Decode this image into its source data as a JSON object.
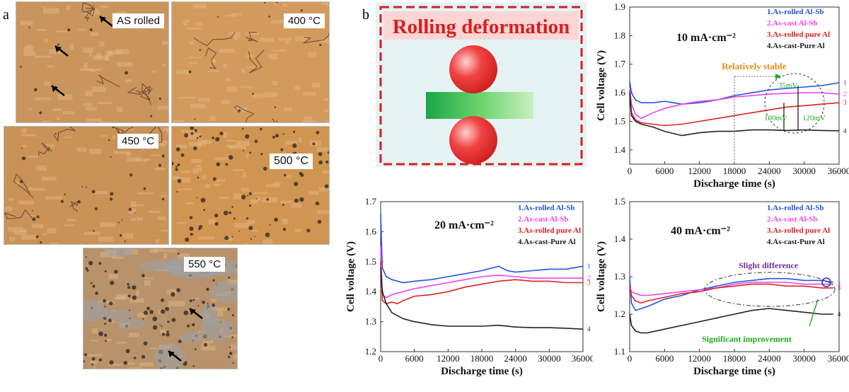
{
  "panel_a": {
    "letter": "a",
    "images": [
      {
        "label": "AS rolled",
        "color": "#c9955c"
      },
      {
        "label": "400 °C",
        "color": "#d39a5d"
      },
      {
        "label": "450 °C",
        "color": "#c99257"
      },
      {
        "label": "500 °C",
        "color": "#d19552"
      },
      {
        "label": "550 °C",
        "color": "#b8926a"
      }
    ]
  },
  "panel_b": {
    "letter": "b",
    "schematic_title": "Rolling deformation"
  },
  "colors": {
    "series1": "#2255dd",
    "series2": "#ee44ee",
    "series3": "#dd2222",
    "series4": "#222222",
    "annotation_orange": "#f08c1a",
    "annotation_green": "#22aa22",
    "annotation_purple": "#7030a0"
  },
  "chart_data": [
    {
      "type": "line",
      "title": "10 mA·cm⁻²",
      "xlabel": "Discharge time (s)",
      "ylabel": "Cell voltage (V)",
      "xlim": [
        0,
        36000
      ],
      "ylim": [
        1.35,
        1.9
      ],
      "x_ticks": [
        "0",
        "6000",
        "12000",
        "18000",
        "24000",
        "30000",
        "36000"
      ],
      "y_ticks": [
        "1.4",
        "1.5",
        "1.6",
        "1.7",
        "1.8",
        "1.9"
      ],
      "legend": [
        "1.As-rolled Al-Sb",
        "2.As-cast Al-Sb",
        "3.As-rolled pure Al",
        "4.As-cast-Pure Al"
      ],
      "end_labels": [
        "1",
        "2",
        "3",
        "4"
      ],
      "annotations": {
        "stable": "Relatively stable",
        "diff1": "35mV",
        "diff2": "100mV",
        "diff3": "120mV"
      },
      "series": [
        {
          "x": [
            0,
            300,
            1000,
            2000,
            4000,
            6000,
            9000,
            12000,
            15000,
            18000,
            21000,
            24000,
            27000,
            30000,
            33000,
            36000
          ],
          "y": [
            1.64,
            1.6,
            1.575,
            1.565,
            1.565,
            1.57,
            1.56,
            1.565,
            1.575,
            1.59,
            1.6,
            1.61,
            1.615,
            1.62,
            1.625,
            1.635
          ]
        },
        {
          "x": [
            0,
            300,
            1000,
            2000,
            4000,
            6000,
            9000,
            12000,
            15000,
            18000,
            21000,
            24000,
            27000,
            30000,
            33000,
            36000
          ],
          "y": [
            1.62,
            1.56,
            1.525,
            1.51,
            1.53,
            1.545,
            1.56,
            1.57,
            1.575,
            1.585,
            1.59,
            1.595,
            1.598,
            1.6,
            1.6,
            1.595
          ]
        },
        {
          "x": [
            0,
            300,
            1000,
            2000,
            4000,
            6000,
            9000,
            12000,
            15000,
            18000,
            21000,
            24000,
            27000,
            30000,
            33000,
            36000
          ],
          "y": [
            1.61,
            1.53,
            1.505,
            1.495,
            1.49,
            1.485,
            1.49,
            1.5,
            1.51,
            1.52,
            1.53,
            1.54,
            1.55,
            1.555,
            1.56,
            1.565
          ]
        },
        {
          "x": [
            0,
            300,
            1000,
            2000,
            4000,
            6000,
            9000,
            12000,
            15000,
            18000,
            21000,
            24000,
            27000,
            30000,
            33000,
            36000
          ],
          "y": [
            1.6,
            1.52,
            1.5,
            1.49,
            1.48,
            1.465,
            1.45,
            1.46,
            1.465,
            1.465,
            1.47,
            1.47,
            1.468,
            1.47,
            1.468,
            1.467
          ]
        }
      ]
    },
    {
      "type": "line",
      "title": "20 mA·cm⁻²",
      "xlabel": "Discharge time (s)",
      "ylabel": "Cell voltage (V)",
      "xlim": [
        0,
        36000
      ],
      "ylim": [
        1.2,
        1.7
      ],
      "x_ticks": [
        "0",
        "6000",
        "12000",
        "18000",
        "24000",
        "30000",
        "36000"
      ],
      "y_ticks": [
        "1.2",
        "1.3",
        "1.4",
        "1.5",
        "1.6",
        "1.7"
      ],
      "legend": [
        "1.As-rolled Al-Sb",
        "2.As-cast Al-Sb",
        "3.As-rolled pure Al",
        "4.As-cast-Pure Al"
      ],
      "end_labels": [
        "1",
        "2",
        "3",
        "4"
      ],
      "series": [
        {
          "x": [
            0,
            300,
            1000,
            2000,
            4000,
            6000,
            9000,
            12000,
            15000,
            18000,
            21000,
            22500,
            24000,
            27000,
            30000,
            33000,
            36000
          ],
          "y": [
            1.66,
            1.48,
            1.45,
            1.44,
            1.43,
            1.435,
            1.44,
            1.45,
            1.46,
            1.47,
            1.485,
            1.47,
            1.465,
            1.47,
            1.475,
            1.475,
            1.485
          ]
        },
        {
          "x": [
            0,
            300,
            1000,
            2000,
            4000,
            6000,
            9000,
            12000,
            15000,
            18000,
            21000,
            24000,
            27000,
            30000,
            33000,
            36000
          ],
          "y": [
            1.55,
            1.39,
            1.38,
            1.39,
            1.4,
            1.41,
            1.42,
            1.43,
            1.44,
            1.45,
            1.455,
            1.45,
            1.445,
            1.445,
            1.445,
            1.445
          ]
        },
        {
          "x": [
            0,
            300,
            1000,
            2000,
            3000,
            4000,
            6000,
            9000,
            12000,
            15000,
            18000,
            21000,
            24000,
            27000,
            30000,
            33000,
            36000
          ],
          "y": [
            1.5,
            1.37,
            1.36,
            1.365,
            1.36,
            1.37,
            1.385,
            1.39,
            1.4,
            1.415,
            1.425,
            1.435,
            1.44,
            1.435,
            1.435,
            1.43,
            1.43
          ]
        },
        {
          "x": [
            0,
            300,
            1000,
            2000,
            4000,
            6000,
            9000,
            12000,
            15000,
            18000,
            21000,
            24000,
            27000,
            30000,
            33000,
            36000
          ],
          "y": [
            1.48,
            1.4,
            1.36,
            1.33,
            1.31,
            1.3,
            1.29,
            1.285,
            1.285,
            1.285,
            1.288,
            1.282,
            1.28,
            1.28,
            1.278,
            1.275
          ]
        }
      ]
    },
    {
      "type": "line",
      "title": "40 mA·cm⁻²",
      "xlabel": "Discharge time (s)",
      "ylabel": "Cell voltage (V)",
      "xlim": [
        0,
        36000
      ],
      "ylim": [
        1.1,
        1.5
      ],
      "x_ticks": [
        "0",
        "6000",
        "12000",
        "18000",
        "24000",
        "30000",
        "36000"
      ],
      "y_ticks": [
        "1.1",
        "1.2",
        "1.3",
        "1.4",
        "1.5"
      ],
      "legend": [
        "1.As-rolled Al-Sb",
        "2.As-cast Al-Sb",
        "3.As-rolled pure Al",
        "4.As-cast-Pure Al"
      ],
      "end_labels": [
        "1",
        "2",
        "3",
        "4"
      ],
      "annotations": {
        "slight": "Slight difference",
        "significant": "Significant improvement"
      },
      "series": [
        {
          "x": [
            0,
            300,
            1000,
            2000,
            3000,
            6000,
            9000,
            12000,
            15000,
            18000,
            21000,
            24000,
            27000,
            30000,
            33000,
            35000
          ],
          "y": [
            1.3,
            1.23,
            1.21,
            1.215,
            1.22,
            1.24,
            1.25,
            1.265,
            1.275,
            1.285,
            1.29,
            1.295,
            1.295,
            1.29,
            1.29,
            1.285
          ]
        },
        {
          "x": [
            0,
            300,
            1000,
            2000,
            3000,
            6000,
            9000,
            12000,
            15000,
            18000,
            21000,
            24000,
            27000,
            30000,
            33000,
            35000
          ],
          "y": [
            1.27,
            1.26,
            1.255,
            1.25,
            1.25,
            1.255,
            1.26,
            1.265,
            1.27,
            1.28,
            1.285,
            1.285,
            1.285,
            1.28,
            1.28,
            1.28
          ]
        },
        {
          "x": [
            0,
            300,
            1000,
            2000,
            3000,
            6000,
            9000,
            12000,
            15000,
            18000,
            21000,
            24000,
            27000,
            30000,
            33000,
            35000
          ],
          "y": [
            1.28,
            1.25,
            1.235,
            1.23,
            1.235,
            1.245,
            1.255,
            1.26,
            1.27,
            1.275,
            1.28,
            1.28,
            1.275,
            1.275,
            1.27,
            1.27
          ]
        },
        {
          "x": [
            0,
            300,
            1000,
            2000,
            3000,
            6000,
            9000,
            12000,
            15000,
            18000,
            21000,
            24000,
            27000,
            30000,
            33000,
            35000
          ],
          "y": [
            1.2,
            1.17,
            1.155,
            1.15,
            1.15,
            1.16,
            1.17,
            1.18,
            1.19,
            1.2,
            1.21,
            1.215,
            1.21,
            1.205,
            1.2,
            1.2
          ]
        }
      ]
    }
  ]
}
